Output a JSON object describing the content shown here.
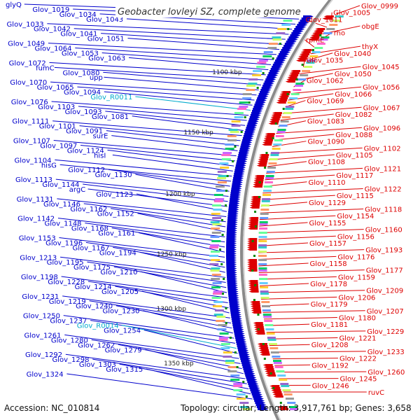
{
  "title": "Geobacter lovleyi SZ, complete genome",
  "footer": {
    "accession_label": "Accession:",
    "accession": "NC_010814",
    "topology_label": "Topology:",
    "topology": "circular",
    "length_label": "Length:",
    "length": "3,917,761 bp",
    "genes_label": "Genes:",
    "genes": "3,658"
  },
  "colors": {
    "forward_genes": "#0000cc",
    "reverse_genes": "#dd0000",
    "rna_labels": "#00aacc",
    "backbone": "#999999",
    "position_marks": "#008800"
  },
  "scale_marks": [
    "1100 kbp",
    "1150 kbp",
    "1200 kbp",
    "1250 kbp",
    "1300 kbp",
    "1350 kbp"
  ],
  "left_labels": [
    {
      "text": "glyQ",
      "type": "gene"
    },
    {
      "text": "Glov_1019",
      "type": "gene"
    },
    {
      "text": "Glov_1034",
      "type": "gene"
    },
    {
      "text": "Glov_1043",
      "type": "gene"
    },
    {
      "text": "Glov_1033",
      "type": "gene"
    },
    {
      "text": "Glov_1042",
      "type": "gene"
    },
    {
      "text": "Glov_1041",
      "type": "gene"
    },
    {
      "text": "Glov_1051",
      "type": "gene"
    },
    {
      "text": "Glov_1049",
      "type": "gene"
    },
    {
      "text": "Glov_1064",
      "type": "gene"
    },
    {
      "text": "Glov_1053",
      "type": "gene"
    },
    {
      "text": "Glov_1063",
      "type": "gene"
    },
    {
      "text": "Glov_1072",
      "type": "gene"
    },
    {
      "text": "fumC",
      "type": "gene"
    },
    {
      "text": "Glov_1080",
      "type": "gene"
    },
    {
      "text": "upp",
      "type": "gene"
    },
    {
      "text": "Glov_1070",
      "type": "gene"
    },
    {
      "text": "Glov_1065",
      "type": "gene"
    },
    {
      "text": "Glov_1094",
      "type": "gene"
    },
    {
      "text": "Glov_R0011",
      "type": "rna"
    },
    {
      "text": "Glov_1076",
      "type": "gene"
    },
    {
      "text": "Glov_1103",
      "type": "gene"
    },
    {
      "text": "Glov_1093",
      "type": "gene"
    },
    {
      "text": "Glov_1081",
      "type": "gene"
    },
    {
      "text": "Glov_1111",
      "type": "gene"
    },
    {
      "text": "Glov_1101",
      "type": "gene"
    },
    {
      "text": "Glov_1091",
      "type": "gene"
    },
    {
      "text": "surE",
      "type": "gene"
    },
    {
      "text": "Glov_1107",
      "type": "gene"
    },
    {
      "text": "Glov_1097",
      "type": "gene"
    },
    {
      "text": "Glov_1124",
      "type": "gene"
    },
    {
      "text": "hisI",
      "type": "gene"
    },
    {
      "text": "Glov_1104",
      "type": "gene"
    },
    {
      "text": "hisG",
      "type": "gene"
    },
    {
      "text": "Glov_1112",
      "type": "gene"
    },
    {
      "text": "Glov_1130",
      "type": "gene"
    },
    {
      "text": "Glov_1113",
      "type": "gene"
    },
    {
      "text": "Glov_1144",
      "type": "gene"
    },
    {
      "text": "argC",
      "type": "gene"
    },
    {
      "text": "Glov_1123",
      "type": "gene"
    },
    {
      "text": "Glov_1131",
      "type": "gene"
    },
    {
      "text": "Glov_1146",
      "type": "gene"
    },
    {
      "text": "Glov_1162",
      "type": "gene"
    },
    {
      "text": "Glov_1152",
      "type": "gene"
    },
    {
      "text": "Glov_1142",
      "type": "gene"
    },
    {
      "text": "Glov_1148",
      "type": "gene"
    },
    {
      "text": "Glov_1168",
      "type": "gene"
    },
    {
      "text": "Glov_1161",
      "type": "gene"
    },
    {
      "text": "Glov_1153",
      "type": "gene"
    },
    {
      "text": "Glov_1196",
      "type": "gene"
    },
    {
      "text": "Glov_1167",
      "type": "gene"
    },
    {
      "text": "Glov_1194",
      "type": "gene"
    },
    {
      "text": "Glov_1213",
      "type": "gene"
    },
    {
      "text": "Glov_1195",
      "type": "gene"
    },
    {
      "text": "Glov_1175",
      "type": "gene"
    },
    {
      "text": "Glov_1210",
      "type": "gene"
    },
    {
      "text": "Glov_1198",
      "type": "gene"
    },
    {
      "text": "Glov_1228",
      "type": "gene"
    },
    {
      "text": "Glov_1214",
      "type": "gene"
    },
    {
      "text": "Glov_1205",
      "type": "gene"
    },
    {
      "text": "Glov_1231",
      "type": "gene"
    },
    {
      "text": "Glov_1219",
      "type": "gene"
    },
    {
      "text": "Glov_1240",
      "type": "gene"
    },
    {
      "text": "Glov_1230",
      "type": "gene"
    },
    {
      "text": "Glov_1250",
      "type": "gene"
    },
    {
      "text": "Glov_1237",
      "type": "gene"
    },
    {
      "text": "Glov_R0014",
      "type": "rna"
    },
    {
      "text": "Glov_1254",
      "type": "gene"
    },
    {
      "text": "Glov_1261",
      "type": "gene"
    },
    {
      "text": "Glov_1280",
      "type": "gene"
    },
    {
      "text": "Glov_1262",
      "type": "gene"
    },
    {
      "text": "Glov_1279",
      "type": "gene"
    },
    {
      "text": "Glov_1292",
      "type": "gene"
    },
    {
      "text": "Glov_1298",
      "type": "gene"
    },
    {
      "text": "Glov_1303",
      "type": "gene"
    },
    {
      "text": "Glov_1315",
      "type": "gene"
    },
    {
      "text": "Glov_1324",
      "type": "gene"
    }
  ],
  "right_labels": [
    {
      "text": "Glov_0999"
    },
    {
      "text": "Glov_1005"
    },
    {
      "text": "Glov_1011"
    },
    {
      "text": "obgE"
    },
    {
      "text": "rho"
    },
    {
      "text": "rpmE"
    },
    {
      "text": "thyX"
    },
    {
      "text": "Glov_1040"
    },
    {
      "text": "Glov_1035"
    },
    {
      "text": "Glov_1045"
    },
    {
      "text": "Glov_1050"
    },
    {
      "text": "Glov_1062"
    },
    {
      "text": "Glov_1056"
    },
    {
      "text": "Glov_1066"
    },
    {
      "text": "Glov_1069"
    },
    {
      "text": "Glov_1067"
    },
    {
      "text": "Glov_1082"
    },
    {
      "text": "Glov_1083"
    },
    {
      "text": "Glov_1096"
    },
    {
      "text": "Glov_1088"
    },
    {
      "text": "Glov_1090"
    },
    {
      "text": "Glov_1102"
    },
    {
      "text": "Glov_1105"
    },
    {
      "text": "Glov_1108"
    },
    {
      "text": "Glov_1121"
    },
    {
      "text": "Glov_1117"
    },
    {
      "text": "Glov_1110"
    },
    {
      "text": "Glov_1122"
    },
    {
      "text": "Glov_1115"
    },
    {
      "text": "Glov_1129"
    },
    {
      "text": "Glov_1118"
    },
    {
      "text": "Glov_1154"
    },
    {
      "text": "Glov_1155"
    },
    {
      "text": "Glov_1160"
    },
    {
      "text": "Glov_1156"
    },
    {
      "text": "Glov_1157"
    },
    {
      "text": "Glov_1193"
    },
    {
      "text": "Glov_1176"
    },
    {
      "text": "Glov_1158"
    },
    {
      "text": "Glov_1177"
    },
    {
      "text": "Glov_1159"
    },
    {
      "text": "Glov_1178"
    },
    {
      "text": "Glov_1209"
    },
    {
      "text": "Glov_1206"
    },
    {
      "text": "Glov_1179"
    },
    {
      "text": "Glov_1207"
    },
    {
      "text": "Glov_1180"
    },
    {
      "text": "Glov_1181"
    },
    {
      "text": "Glov_1229"
    },
    {
      "text": "Glov_1221"
    },
    {
      "text": "Glov_1208"
    },
    {
      "text": "Glov_1233"
    },
    {
      "text": "Glov_1222"
    },
    {
      "text": "Glov_1192"
    },
    {
      "text": "Glov_1260"
    },
    {
      "text": "Glov_1245"
    },
    {
      "text": "Glov_1246"
    },
    {
      "text": "ruvC"
    }
  ]
}
